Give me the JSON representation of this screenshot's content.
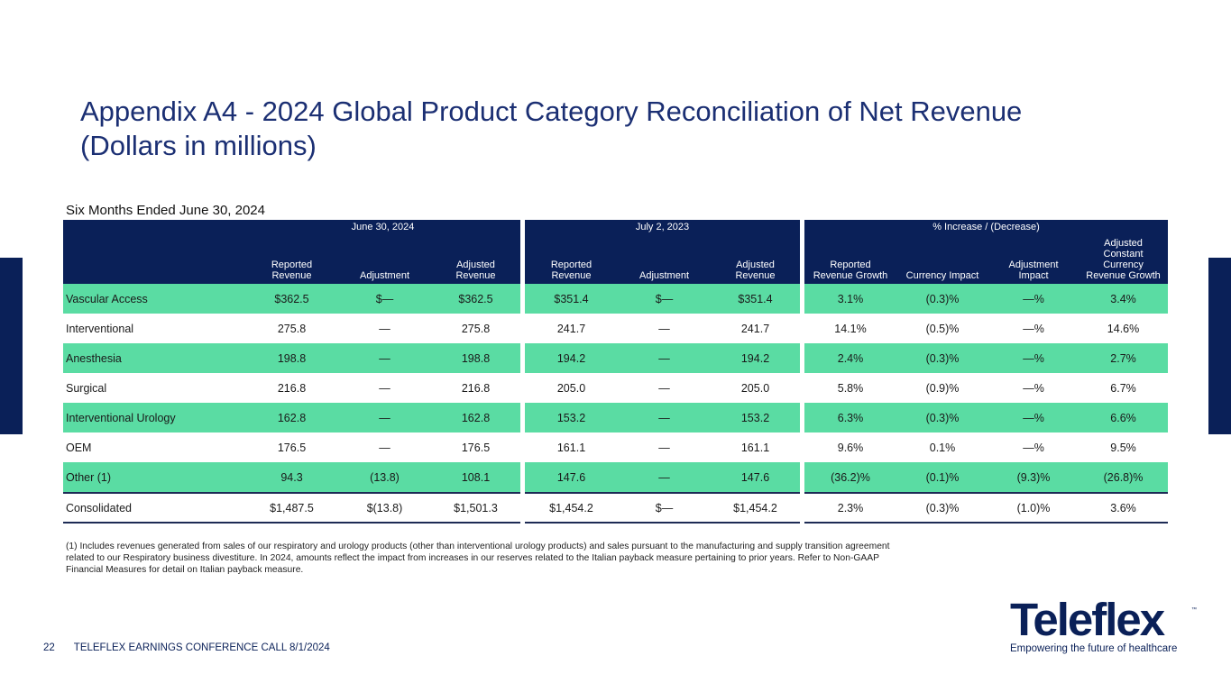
{
  "title": {
    "line1": "Appendix A4 - 2024 Global Product Category Reconciliation of Net Revenue",
    "line2": "(Dollars in millions)"
  },
  "subtitle": "Six Months Ended June 30, 2024",
  "table": {
    "groups": [
      "June 30, 2024",
      "July 2, 2023",
      "% Increase / (Decrease)"
    ],
    "columns": [
      [
        "Reported",
        "Revenue"
      ],
      [
        "Adjustment"
      ],
      [
        "Adjusted",
        "Revenue"
      ],
      [
        "Reported",
        "Revenue"
      ],
      [
        "Adjustment"
      ],
      [
        "Adjusted",
        "Revenue"
      ],
      [
        "Reported",
        "Revenue Growth"
      ],
      [
        "Currency Impact"
      ],
      [
        "Adjustment",
        "Impact"
      ],
      [
        "Adjusted",
        "Constant",
        "Currency",
        "Revenue Growth"
      ]
    ],
    "rows": [
      {
        "label": "Vascular Access",
        "cells": [
          "$362.5",
          "$—",
          "$362.5",
          "$351.4",
          "$—",
          "$351.4",
          "3.1%",
          "(0.3)%",
          "—%",
          "3.4%"
        ]
      },
      {
        "label": "Interventional",
        "cells": [
          "275.8",
          "—",
          "275.8",
          "241.7",
          "—",
          "241.7",
          "14.1%",
          "(0.5)%",
          "—%",
          "14.6%"
        ]
      },
      {
        "label": "Anesthesia",
        "cells": [
          "198.8",
          "—",
          "198.8",
          "194.2",
          "—",
          "194.2",
          "2.4%",
          "(0.3)%",
          "—%",
          "2.7%"
        ]
      },
      {
        "label": "Surgical",
        "cells": [
          "216.8",
          "—",
          "216.8",
          "205.0",
          "—",
          "205.0",
          "5.8%",
          "(0.9)%",
          "—%",
          "6.7%"
        ]
      },
      {
        "label": "Interventional Urology",
        "cells": [
          "162.8",
          "—",
          "162.8",
          "153.2",
          "—",
          "153.2",
          "6.3%",
          "(0.3)%",
          "—%",
          "6.6%"
        ]
      },
      {
        "label": "OEM",
        "cells": [
          "176.5",
          "—",
          "176.5",
          "161.1",
          "—",
          "161.1",
          "9.6%",
          "0.1%",
          "—%",
          "9.5%"
        ]
      },
      {
        "label": "Other (1)",
        "cells": [
          "94.3",
          "(13.8)",
          "108.1",
          "147.6",
          "—",
          "147.6",
          "(36.2)%",
          "(0.1)%",
          "(9.3)%",
          "(26.8)%"
        ]
      },
      {
        "label": "Consolidated",
        "cells": [
          "$1,487.5",
          "$(13.8)",
          "$1,501.3",
          "$1,454.2",
          "$—",
          "$1,454.2",
          "2.3%",
          "(0.3)%",
          "(1.0)%",
          "3.6%"
        ]
      }
    ]
  },
  "footnote": "(1) Includes revenues generated from sales of our respiratory and urology products (other than interventional urology products) and sales pursuant to the manufacturing and supply transition agreement related to our Respiratory business divestiture. In 2024, amounts reflect the impact from increases in our reserves related to the Italian payback measure pertaining to prior years. Refer to Non-GAAP Financial Measures for detail on Italian payback measure.",
  "footer": {
    "page_number": "22",
    "text": "TELEFLEX EARNINGS CONFERENCE CALL 8/1/2024"
  },
  "logo": {
    "wordmark": "Teleflex",
    "trademark": "™",
    "tagline": "Empowering the future of healthcare"
  },
  "colors": {
    "navy": "#0a2058",
    "title_blue": "#1b2f73",
    "row_green": "#5adca3"
  }
}
